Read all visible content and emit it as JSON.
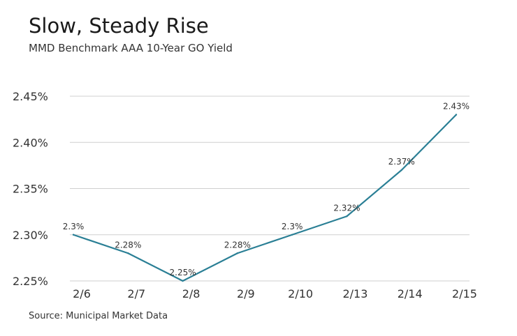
{
  "chart_data": {
    "type": "line",
    "title": "Slow, Steady Rise",
    "subtitle": "MMD Benchmark AAA 10-Year GO Yield",
    "source": "Source: Municipal Market Data",
    "categories": [
      "2/6",
      "2/7",
      "2/8",
      "2/9",
      "2/10",
      "2/13",
      "2/14",
      "2/15"
    ],
    "series": [
      {
        "values": [
          2.3,
          2.28,
          2.25,
          2.28,
          2.3,
          2.32,
          2.37,
          2.43
        ],
        "labels": [
          "2.3%",
          "2.28%",
          "2.25%",
          "2.28%",
          "2.3%",
          "2.32%",
          "2.37%",
          "2.43%"
        ],
        "color": "#2a7f95"
      }
    ],
    "yticks": [
      2.25,
      2.3,
      2.35,
      2.4,
      2.45
    ],
    "ytick_labels": [
      "2.25%",
      "2.30%",
      "2.35%",
      "2.40%",
      "2.45%"
    ],
    "ylim": [
      2.25,
      2.45
    ],
    "xlabel": "",
    "ylabel": "",
    "grid": true,
    "legend": "none"
  }
}
